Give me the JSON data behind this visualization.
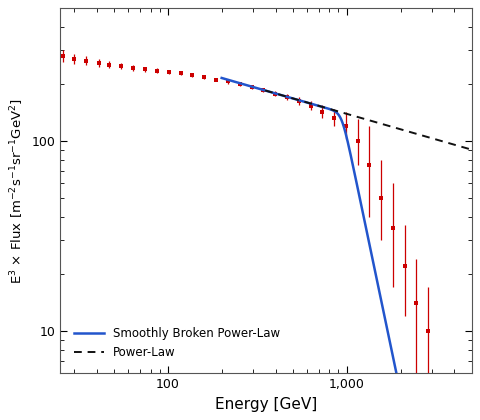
{
  "xlabel": "Energy [GeV]",
  "ylabel": "E$^3$ $\\times$ Flux [m$^{-2}$s$^{-1}$sr$^{-1}$GeV$^2$]",
  "xlim": [
    25,
    5000
  ],
  "ylim": [
    6,
    500
  ],
  "legend_labels": [
    "Smoothly Broken Power-Law",
    "Power-Law"
  ],
  "legend_colors": [
    "#2255cc",
    "#111111"
  ],
  "data_color": "#cc0000",
  "bg_color": "#ffffff",
  "sbpl_params": {
    "phi0": 215.0,
    "E_ref": 200.0,
    "alpha_lo": 0.27,
    "E_b": 940.0,
    "alpha_hi": 4.5,
    "s": 0.15
  },
  "pl_params": {
    "phi0": 215.0,
    "E_ref": 200.0,
    "alpha": 0.27,
    "E_start": 350.0,
    "E_end": 5000.0
  },
  "data_energies": [
    26,
    30,
    35,
    41,
    47,
    55,
    64,
    75,
    87,
    101,
    118,
    137,
    160,
    186,
    217,
    252,
    294,
    342,
    398,
    463,
    540,
    628,
    731,
    851,
    990,
    1152,
    1340,
    1559,
    1814,
    2111,
    2457,
    2860
  ],
  "data_y": [
    280,
    270,
    265,
    258,
    252,
    248,
    243,
    239,
    235,
    231,
    227,
    222,
    217,
    211,
    206,
    200,
    193,
    186,
    178,
    170,
    162,
    153,
    143,
    132,
    120,
    100,
    75,
    50,
    35,
    22,
    14,
    10
  ],
  "data_yerr_lo": [
    18,
    15,
    13,
    11,
    10,
    9,
    8,
    7,
    7,
    6,
    5,
    5,
    5,
    5,
    5,
    5,
    5,
    5,
    6,
    6,
    7,
    8,
    10,
    12,
    18,
    25,
    35,
    20,
    18,
    10,
    8,
    5
  ],
  "data_yerr_hi": [
    20,
    17,
    14,
    12,
    11,
    10,
    9,
    8,
    7,
    6,
    5,
    5,
    5,
    5,
    5,
    5,
    5,
    5,
    6,
    7,
    8,
    9,
    12,
    15,
    22,
    30,
    45,
    30,
    25,
    14,
    10,
    7
  ],
  "figsize": [
    4.8,
    4.2
  ],
  "dpi": 100
}
